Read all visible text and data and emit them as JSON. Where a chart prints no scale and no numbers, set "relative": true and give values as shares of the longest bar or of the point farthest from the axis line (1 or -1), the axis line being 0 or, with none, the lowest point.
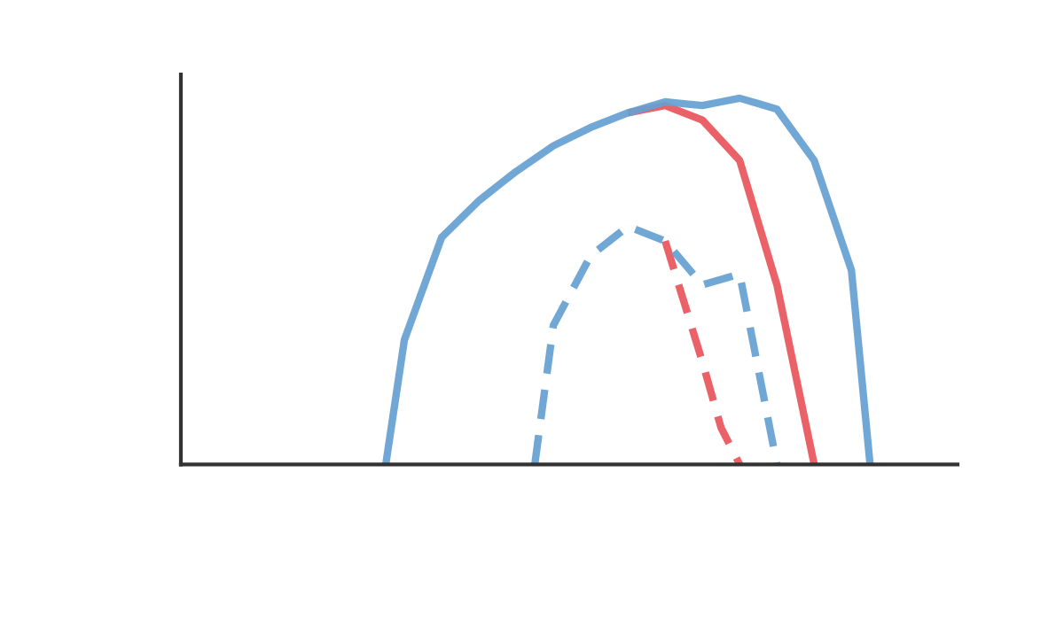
{
  "chart_data": {
    "type": "line",
    "relative": true,
    "legend": false,
    "categories": [
      null,
      null,
      null,
      null,
      null,
      null,
      null,
      null,
      null,
      null,
      null,
      null,
      null,
      null,
      null,
      null,
      null,
      null,
      null,
      null,
      null,
      null,
      null,
      null,
      null,
      null,
      null,
      null,
      null,
      null,
      null,
      null,
      null,
      null,
      null,
      null,
      null,
      null,
      null,
      null,
      null,
      null
    ],
    "series": [
      {
        "color": "#e8545a",
        "line_style": "solid",
        "values": [
          null,
          null,
          null,
          null,
          null,
          null,
          null,
          null,
          null,
          null,
          null,
          null,
          null,
          null,
          null,
          null,
          null,
          null,
          null,
          null,
          null,
          null,
          null,
          null,
          0.96,
          0.97,
          0.98,
          0.96,
          0.94,
          0.885,
          0.83,
          0.66,
          0.49,
          0.245,
          0,
          null,
          null,
          null,
          null,
          null,
          null,
          null
        ]
      },
      {
        "color": "#659fd0",
        "line_style": "solid",
        "values": [
          null,
          null,
          null,
          null,
          null,
          null,
          null,
          null,
          null,
          null,
          null,
          0,
          0.34,
          0.48,
          0.62,
          0.67,
          0.72,
          0.76,
          0.8,
          0.835,
          0.87,
          0.895,
          0.92,
          0.94,
          0.96,
          0.975,
          0.99,
          0.985,
          0.98,
          0.99,
          1,
          0.985,
          0.97,
          0.9,
          0.83,
          0.68,
          0.53,
          0,
          null,
          null,
          null,
          null
        ]
      },
      {
        "color": "#e8545a",
        "line_style": "dashed",
        "values": [
          null,
          null,
          null,
          null,
          null,
          null,
          null,
          null,
          null,
          null,
          null,
          null,
          null,
          null,
          null,
          null,
          null,
          null,
          null,
          null,
          null,
          null,
          null,
          null,
          null,
          null,
          0.61,
          0.445,
          0.28,
          0.1,
          0,
          null,
          null,
          null,
          null,
          null,
          null,
          null,
          null,
          null,
          null,
          null
        ]
      },
      {
        "color": "#659fd0",
        "line_style": "dashed",
        "values": [
          null,
          null,
          null,
          null,
          null,
          null,
          null,
          null,
          null,
          null,
          null,
          null,
          null,
          null,
          null,
          null,
          null,
          null,
          null,
          0,
          0.38,
          0.475,
          0.57,
          0.61,
          0.65,
          0.63,
          0.61,
          0.55,
          0.49,
          0.505,
          0.52,
          0.26,
          0,
          null,
          null,
          null,
          null,
          null,
          null,
          null,
          null,
          null
        ]
      }
    ]
  }
}
